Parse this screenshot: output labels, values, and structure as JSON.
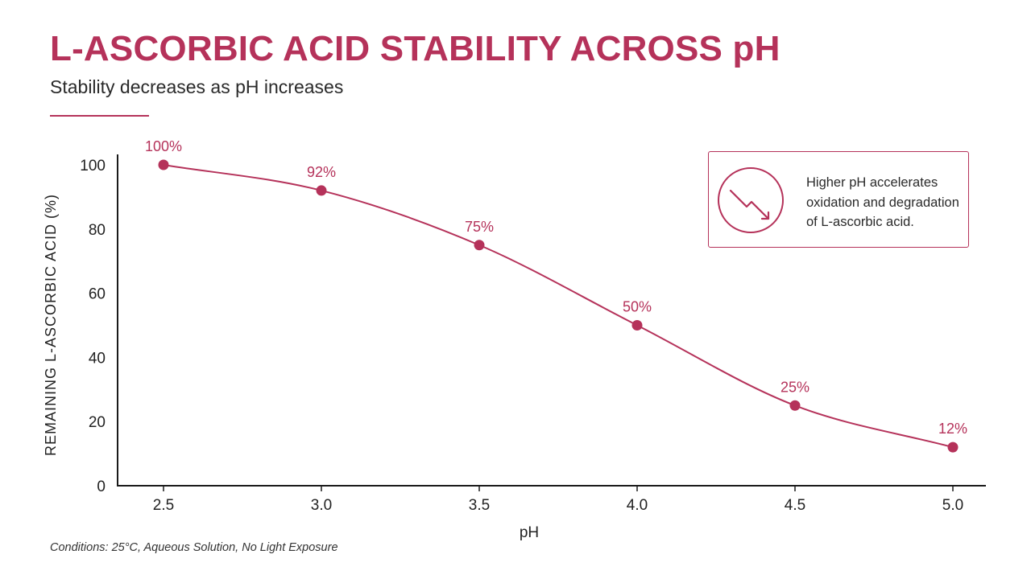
{
  "header": {
    "title": "L-ASCORBIC ACID STABILITY ACROSS pH",
    "subtitle": "Stability decreases as pH increases"
  },
  "callout": {
    "icon": "trend-down-icon",
    "text": "Higher pH accelerates oxidation and degradation of L-ascorbic acid."
  },
  "footnote": "Conditions: 25°C, Aqueous Solution, No Light Exposure",
  "colors": {
    "accent": "#b5325a",
    "axis": "#1a1a1a",
    "text": "#222222"
  },
  "chart_data": {
    "type": "line",
    "xlabel": "pH",
    "ylabel": "REMAINING L-ASCORBIC ACID (%)",
    "x": [
      2.5,
      3.0,
      3.5,
      4.0,
      4.5,
      5.0
    ],
    "x_tick_labels": [
      "2.5",
      "3.0",
      "3.5",
      "4.0",
      "4.5",
      "5.0"
    ],
    "y_ticks": [
      0,
      20,
      40,
      60,
      80,
      100
    ],
    "ylim": [
      0,
      100
    ],
    "grid": false,
    "series": [
      {
        "values": [
          100,
          92,
          75,
          50,
          25,
          12
        ],
        "data_labels": [
          "100%",
          "92%",
          "75%",
          "50%",
          "25%",
          "12%"
        ]
      }
    ]
  }
}
